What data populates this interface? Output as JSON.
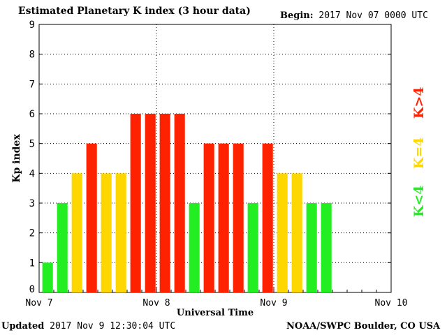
{
  "header": {
    "title": "Estimated Planetary K index (3 hour data)",
    "begin_label": "Begin:",
    "begin_value": "2017 Nov 07 0000 UTC"
  },
  "footer": {
    "updated_label": "Updated",
    "updated_value": "2017 Nov  9 12:30:04 UTC",
    "credit": "NOAA/SWPC Boulder, CO USA"
  },
  "legend": {
    "low": "K<4",
    "mid": "K=4",
    "high": "K>4"
  },
  "colors": {
    "low": "#22ee22",
    "mid": "#ffd700",
    "high": "#ff2200"
  },
  "chart_data": {
    "type": "bar",
    "title": "Estimated Planetary K index (3 hour data)",
    "xlabel": "Universal Time",
    "ylabel": "Kp index",
    "ylim": [
      0,
      9
    ],
    "yticks": [
      0,
      1,
      2,
      3,
      4,
      5,
      6,
      7,
      8,
      9
    ],
    "xticks": [
      "Nov 7",
      "Nov 8",
      "Nov 9",
      "Nov 10"
    ],
    "grid": true,
    "bin_hours": 3,
    "values": [
      1,
      3,
      4,
      5,
      4,
      4,
      6,
      6,
      6,
      6,
      3,
      5,
      5,
      5,
      3,
      5,
      4,
      4,
      3,
      3
    ]
  }
}
